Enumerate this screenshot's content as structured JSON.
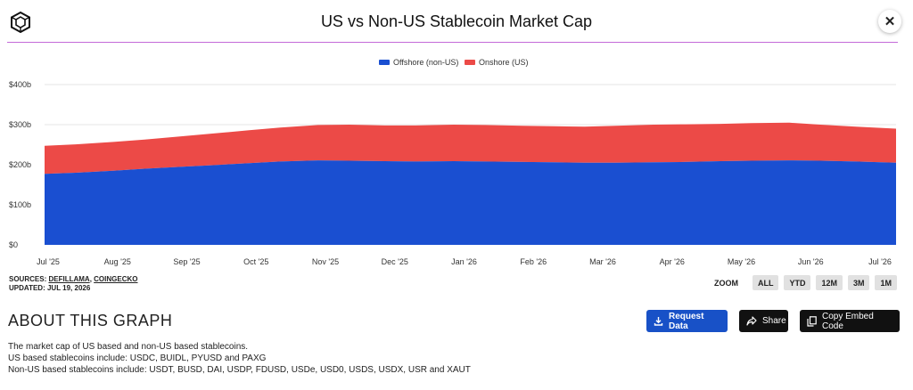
{
  "header": {
    "title": "US vs Non-US Stablecoin Market Cap",
    "close_label": "✕"
  },
  "chart_data": {
    "type": "area",
    "stacked": true,
    "title": "US vs Non-US Stablecoin Market Cap",
    "legend_position": "top-center",
    "x_labels": [
      "Jul '25",
      "Aug '25",
      "Sep '25",
      "Oct '25",
      "Nov '25",
      "Dec '25",
      "Jan '26",
      "Feb '26",
      "Mar '26",
      "Apr '26",
      "May '26",
      "Jun '26",
      "Jul '26"
    ],
    "y_ticks": [
      "$0",
      "$100b",
      "$200b",
      "$300b",
      "$400b"
    ],
    "ylim": [
      0,
      400
    ],
    "y_unit": "billions USD",
    "grid": true,
    "x": [
      "2025-07-01",
      "2025-07-15",
      "2025-08-01",
      "2025-08-15",
      "2025-09-01",
      "2025-09-15",
      "2025-10-01",
      "2025-10-15",
      "2025-11-01",
      "2025-11-15",
      "2025-12-01",
      "2025-12-15",
      "2026-01-01",
      "2026-01-15",
      "2026-02-01",
      "2026-02-15",
      "2026-03-01",
      "2026-03-15",
      "2026-04-01",
      "2026-04-15",
      "2026-05-01",
      "2026-05-15",
      "2026-06-01",
      "2026-06-15",
      "2026-07-01",
      "2026-07-19"
    ],
    "series": [
      {
        "name": "Offshore (non-US)",
        "color": "#1a4fd1",
        "values": [
          177,
          180,
          185,
          190,
          195,
          199,
          204,
          208,
          211,
          210,
          209,
          208,
          209,
          208,
          207,
          206,
          205,
          205,
          206,
          207,
          209,
          210,
          211,
          210,
          208,
          205
        ]
      },
      {
        "name": "Onshore (US)",
        "color": "#ec4a47",
        "values": [
          70,
          71,
          72,
          73,
          76,
          79,
          82,
          85,
          88,
          90,
          89,
          90,
          91,
          91,
          90,
          90,
          90,
          92,
          94,
          94,
          93,
          94,
          94,
          90,
          87,
          85
        ]
      }
    ]
  },
  "sources": {
    "label": "SOURCES:",
    "link1": "DEFILLAMA",
    "sep": ",",
    "link2": "COINGECKO",
    "updated": "UPDATED: JUL 19, 2026"
  },
  "zoom": {
    "label": "ZOOM",
    "options": [
      "ALL",
      "YTD",
      "12M",
      "3M",
      "1M"
    ]
  },
  "about": {
    "title": "ABOUT THIS GRAPH",
    "lines": [
      "The market cap of US based and non-US based stablecoins.",
      "US based stablecoins include: USDC, BUIDL, PYUSD and PAXG",
      "Non-US based stablecoins include: USDT, BUSD, DAI, USDP, FDUSD, USDe, USD0, USDS, USDX, USR and XAUT"
    ]
  },
  "buttons": {
    "request": "Request Data",
    "share": "Share",
    "embed": "Copy Embed Code"
  }
}
